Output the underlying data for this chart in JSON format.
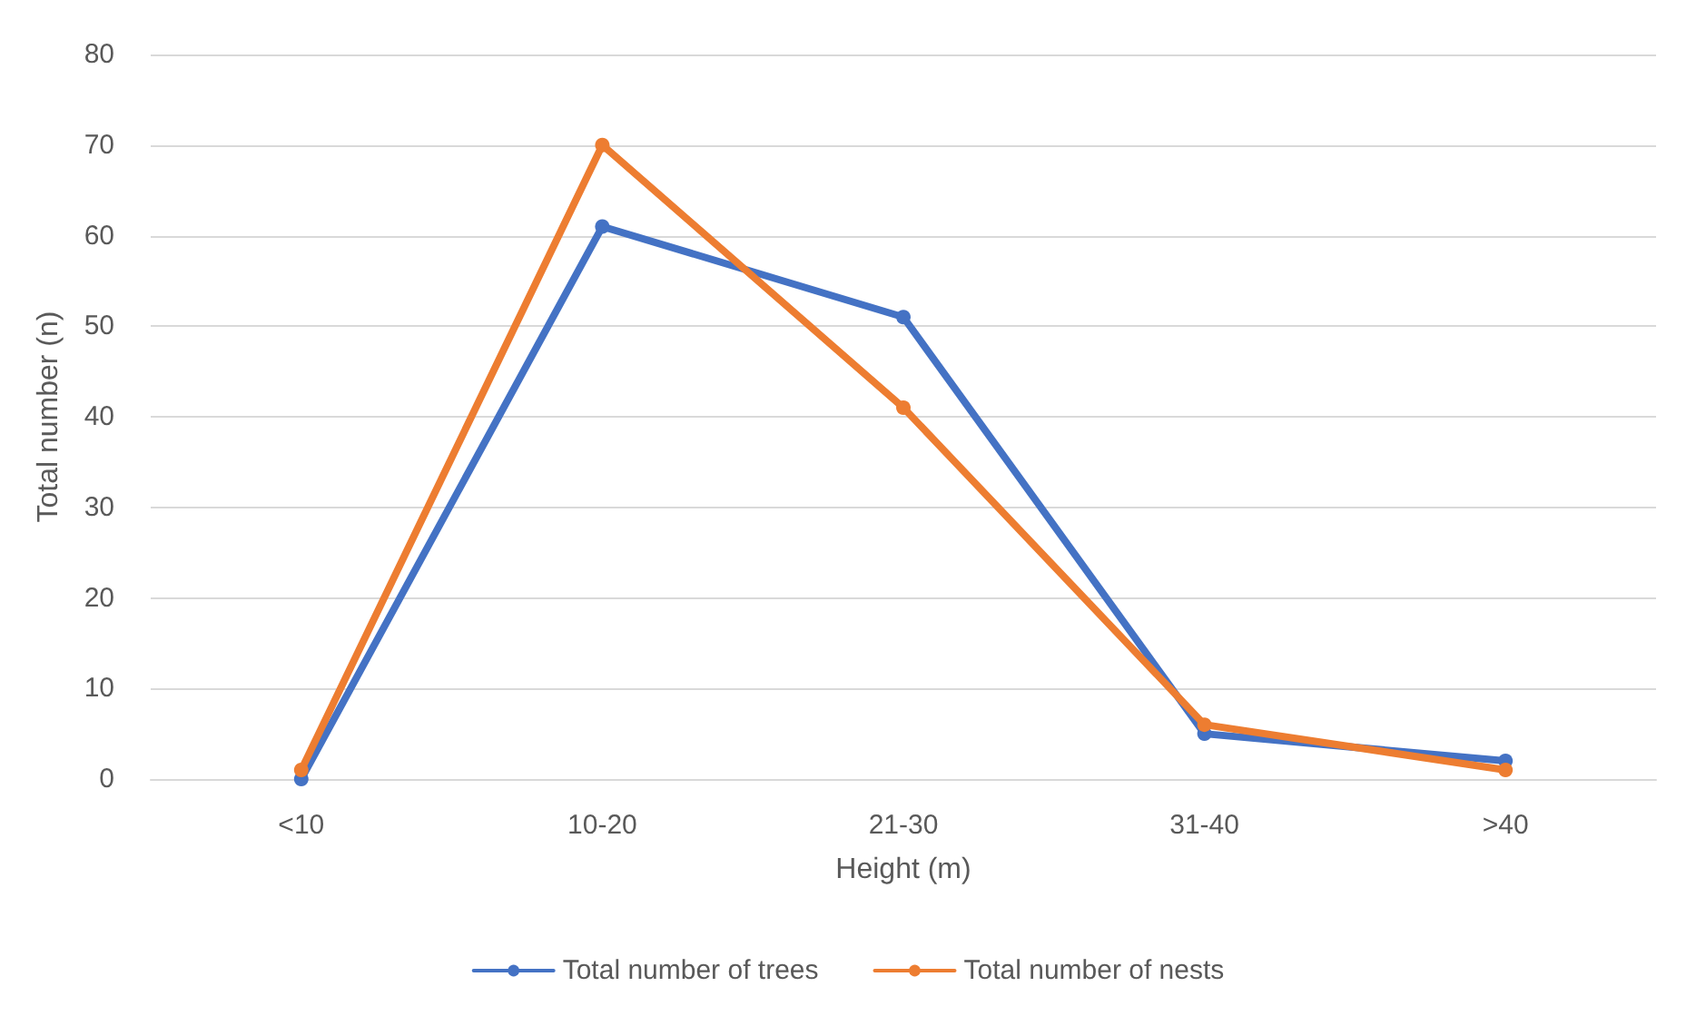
{
  "chart_data": {
    "type": "line",
    "xlabel": "Height (m)",
    "ylabel": "Total number (n)",
    "categories": [
      "<10",
      "10-20",
      "21-30",
      "31-40",
      ">40"
    ],
    "series": [
      {
        "name": "Total number of trees",
        "color": "#4472c4",
        "values": [
          0,
          61,
          51,
          5,
          2
        ]
      },
      {
        "name": "Total number of nests",
        "color": "#ed7d31",
        "values": [
          1,
          70,
          41,
          6,
          1
        ]
      }
    ],
    "ylim": [
      0,
      80
    ],
    "yticks": [
      0,
      10,
      20,
      30,
      40,
      50,
      60,
      70,
      80
    ],
    "grid": "y",
    "legend": "bottom",
    "marker": "circle",
    "line_style": "solid"
  }
}
